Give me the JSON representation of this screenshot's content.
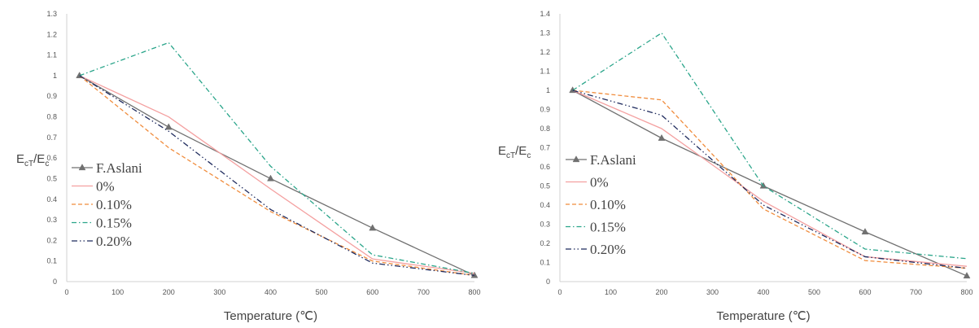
{
  "chart_data": [
    {
      "type": "line",
      "title": "",
      "xlabel": "Temperature (℃)",
      "ylabel": {
        "main": "E",
        "sub1": "cT",
        "slash": "/E",
        "sub2": "c"
      },
      "xlim": [
        0,
        800
      ],
      "ylim": [
        0,
        1.3
      ],
      "xticks": [
        0,
        100,
        200,
        300,
        400,
        500,
        600,
        700,
        800
      ],
      "yticks": [
        0,
        0.1,
        0.2,
        0.3,
        0.4,
        0.5,
        0.6,
        0.7,
        0.8,
        0.9,
        1,
        1.1,
        1.2,
        1.3
      ],
      "grid": false,
      "legend": "left",
      "series": [
        {
          "name": "F.Aslani",
          "color": "#707070",
          "dash": "",
          "marker": "triangle",
          "x": [
            25,
            200,
            400,
            600,
            800
          ],
          "y": [
            1.0,
            0.75,
            0.5,
            0.26,
            0.03
          ]
        },
        {
          "name": "0%",
          "color": "#f4a0a0",
          "dash": "",
          "marker": "none",
          "x": [
            25,
            200,
            400,
            600,
            800
          ],
          "y": [
            1.0,
            0.8,
            0.45,
            0.11,
            0.04
          ]
        },
        {
          "name": "0.10%",
          "color": "#f08c3c",
          "dash": "5,3",
          "marker": "none",
          "x": [
            25,
            200,
            400,
            600,
            800
          ],
          "y": [
            1.0,
            0.65,
            0.34,
            0.1,
            0.03
          ]
        },
        {
          "name": "0.15%",
          "color": "#2aa58a",
          "dash": "6,3,1.5,3",
          "marker": "none",
          "x": [
            25,
            200,
            400,
            600,
            800
          ],
          "y": [
            1.0,
            1.16,
            0.56,
            0.13,
            0.04
          ]
        },
        {
          "name": "0.20%",
          "color": "#1f2b5e",
          "dash": "7,3,1.5,3,1.5,3",
          "marker": "none",
          "x": [
            25,
            200,
            400,
            600,
            800
          ],
          "y": [
            1.0,
            0.73,
            0.35,
            0.09,
            0.03
          ]
        }
      ]
    },
    {
      "type": "line",
      "title": "",
      "xlabel": "Temperature (℃)",
      "ylabel": {
        "main": "E",
        "sub1": "cT",
        "slash": "/E",
        "sub2": "c"
      },
      "xlim": [
        0,
        800
      ],
      "ylim": [
        0,
        1.4
      ],
      "xticks": [
        0,
        100,
        200,
        300,
        400,
        500,
        600,
        700,
        800
      ],
      "yticks": [
        0,
        0.1,
        0.2,
        0.3,
        0.4,
        0.5,
        0.6,
        0.7,
        0.8,
        0.9,
        1,
        1.1,
        1.2,
        1.3,
        1.4
      ],
      "grid": false,
      "legend": "left",
      "series": [
        {
          "name": "F.Aslani",
          "color": "#707070",
          "dash": "",
          "marker": "triangle",
          "x": [
            25,
            200,
            400,
            600,
            800
          ],
          "y": [
            1.0,
            0.75,
            0.5,
            0.26,
            0.03
          ]
        },
        {
          "name": "0%",
          "color": "#f4a0a0",
          "dash": "",
          "marker": "none",
          "x": [
            25,
            200,
            400,
            600,
            800
          ],
          "y": [
            1.0,
            0.8,
            0.42,
            0.13,
            0.08
          ]
        },
        {
          "name": "0.10%",
          "color": "#f08c3c",
          "dash": "5,3",
          "marker": "none",
          "x": [
            25,
            200,
            400,
            600,
            800
          ],
          "y": [
            1.0,
            0.95,
            0.38,
            0.11,
            0.07
          ]
        },
        {
          "name": "0.15%",
          "color": "#2aa58a",
          "dash": "6,3,1.5,3",
          "marker": "none",
          "x": [
            25,
            200,
            400,
            600,
            800
          ],
          "y": [
            1.0,
            1.3,
            0.5,
            0.17,
            0.12
          ]
        },
        {
          "name": "0.20%",
          "color": "#1f2b5e",
          "dash": "7,3,1.5,3,1.5,3",
          "marker": "none",
          "x": [
            25,
            200,
            400,
            600,
            800
          ],
          "y": [
            1.0,
            0.87,
            0.4,
            0.13,
            0.07
          ]
        }
      ]
    }
  ]
}
